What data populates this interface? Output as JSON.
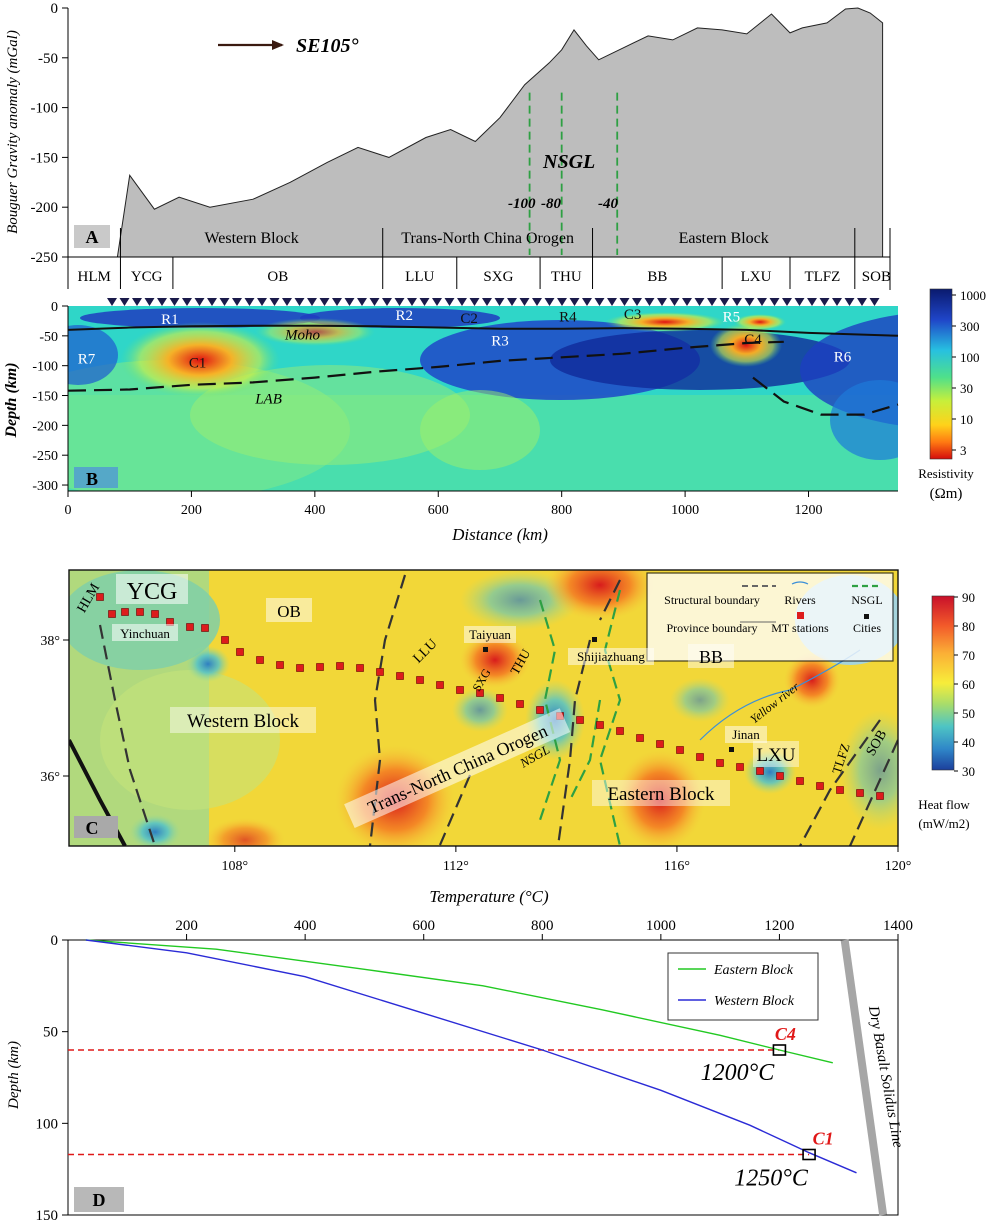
{
  "chart_data": [
    {
      "type": "area",
      "panel_label": "A",
      "ylabel": "Bouguer Gravity anomaly (mGal)",
      "ylim": [
        -250,
        0
      ],
      "y_ticks": [
        "0",
        "-50",
        "-100",
        "-150",
        "-200",
        "-250"
      ],
      "direction_label": "SE105°",
      "nsgl_label": "NSGL",
      "nsgl_contours": [
        {
          "label": "-100",
          "x": 748
        },
        {
          "label": "-80",
          "x": 800
        },
        {
          "label": "-40",
          "x": 890
        }
      ],
      "x": [
        80,
        100,
        140,
        180,
        230,
        300,
        360,
        420,
        470,
        520,
        580,
        620,
        660,
        700,
        740,
        780,
        800,
        820,
        840,
        860,
        900,
        940,
        980,
        1020,
        1060,
        1100,
        1140,
        1170,
        1190,
        1230,
        1260,
        1280,
        1300,
        1320
      ],
      "values": [
        -250,
        -168,
        -202,
        -190,
        -200,
        -192,
        -175,
        -155,
        -140,
        -150,
        -130,
        -122,
        -134,
        -110,
        -77,
        -55,
        -42,
        -22,
        -38,
        -52,
        -40,
        -28,
        -32,
        -20,
        -22,
        -26,
        -6,
        -25,
        -20,
        -15,
        -1,
        0,
        -5,
        -15
      ],
      "units": [
        {
          "name": "HLM",
          "from": 0,
          "to": 85
        },
        {
          "name": "YCG",
          "from": 85,
          "to": 170
        },
        {
          "name": "OB",
          "from": 170,
          "to": 510
        },
        {
          "name": "LLU",
          "from": 510,
          "to": 630
        },
        {
          "name": "SXG",
          "from": 630,
          "to": 765
        },
        {
          "name": "THU",
          "from": 765,
          "to": 850
        },
        {
          "name": "BB",
          "from": 850,
          "to": 1060
        },
        {
          "name": "LXU",
          "from": 1060,
          "to": 1170
        },
        {
          "name": "TLFZ",
          "from": 1170,
          "to": 1275
        },
        {
          "name": "SOB",
          "from": 1275,
          "to": 1345
        }
      ],
      "blocks": [
        {
          "name": "Western Block",
          "from": 85,
          "to": 510
        },
        {
          "name": "Trans-North China Orogen",
          "from": 510,
          "to": 850
        },
        {
          "name": "Eastern Block",
          "from": 850,
          "to": 1275
        }
      ]
    },
    {
      "type": "heatmap",
      "panel_label": "B",
      "xlabel": "Distance (km)",
      "ylabel": "Depth (km)",
      "xlim": [
        0,
        1345
      ],
      "ylim": [
        -310,
        0
      ],
      "x_ticks": [
        "0",
        "200",
        "400",
        "600",
        "800",
        "1000",
        "1200"
      ],
      "y_ticks": [
        "0",
        "-50",
        "-100",
        "-150",
        "-200",
        "-250",
        "-300"
      ],
      "colorbar": {
        "title": "Resistivity",
        "unit": "(Ωm)",
        "ticks": [
          "1000",
          "300",
          "100",
          "30",
          "10",
          "3"
        ]
      },
      "labels": [
        {
          "text": "R1",
          "x": 165,
          "y": -22
        },
        {
          "text": "R2",
          "x": 545,
          "y": -15
        },
        {
          "text": "C2",
          "x": 650,
          "y": -20
        },
        {
          "text": "R4",
          "x": 810,
          "y": -18
        },
        {
          "text": "C3",
          "x": 915,
          "y": -13
        },
        {
          "text": "R5",
          "x": 1075,
          "y": -18
        },
        {
          "text": "R3",
          "x": 700,
          "y": -58
        },
        {
          "text": "C4",
          "x": 1110,
          "y": -55
        },
        {
          "text": "R7",
          "x": 30,
          "y": -88
        },
        {
          "text": "C1",
          "x": 210,
          "y": -95
        },
        {
          "text": "R6",
          "x": 1255,
          "y": -85
        }
      ],
      "boundary_labels": [
        {
          "text": "Moho",
          "x": 380,
          "y": -48
        },
        {
          "text": "LAB",
          "x": 325,
          "y": -155
        }
      ]
    },
    {
      "type": "heatmap",
      "panel_label": "C",
      "xlabel": "Temperature (°C)",
      "x_ticks": [
        "108°",
        "112°",
        "116°",
        "120°"
      ],
      "y_ticks": [
        "38°",
        "36°"
      ],
      "colorbar": {
        "title": "Heat flow",
        "unit": "(mW/m2)",
        "ticks": [
          "90",
          "80",
          "70",
          "60",
          "50",
          "40",
          "30"
        ]
      },
      "legend": [
        "Structural boundary",
        "Province boundary",
        "Rivers",
        "MT stations",
        "NSGL",
        "Cities"
      ],
      "region_labels": [
        "HLM",
        "YCG",
        "OB",
        "LLU",
        "SXG",
        "THU",
        "BB",
        "LXU",
        "TLFZ",
        "SOB",
        "Western Block",
        "Trans-North China Orogen",
        "Eastern Block",
        "NSGL",
        "Yellow river"
      ],
      "cities": [
        "Yinchuan",
        "Taiyuan",
        "Shijiazhuang",
        "Jinan"
      ]
    },
    {
      "type": "line",
      "panel_label": "D",
      "ylabel": "Depth (km)",
      "xlim": [
        0,
        1400
      ],
      "ylim": [
        150,
        0
      ],
      "x_ticks": [
        "200",
        "400",
        "600",
        "800",
        "1000",
        "1200",
        "1400"
      ],
      "y_ticks": [
        "0",
        "50",
        "100",
        "150"
      ],
      "series": [
        {
          "name": "Eastern Block",
          "color": "#22c922",
          "x": [
            30,
            250,
            500,
            700,
            900,
            1100,
            1200,
            1290
          ],
          "y": [
            0,
            5,
            16,
            25,
            38,
            52,
            60,
            67
          ]
        },
        {
          "name": "Western Block",
          "color": "#2b2bd6",
          "x": [
            30,
            200,
            400,
            600,
            800,
            1000,
            1150,
            1250,
            1330
          ],
          "y": [
            0,
            7,
            20,
            40,
            60,
            82,
            101,
            116,
            127
          ]
        }
      ],
      "solidus": {
        "label": "Dry Basalt Solidus Line",
        "x": [
          1310,
          1375
        ],
        "y": [
          0,
          150
        ]
      },
      "markers": [
        {
          "label": "C4",
          "temp_label": "1200°C",
          "x": 1200,
          "y": 60
        },
        {
          "label": "C1",
          "temp_label": "1250°C",
          "x": 1250,
          "y": 117
        }
      ]
    }
  ]
}
